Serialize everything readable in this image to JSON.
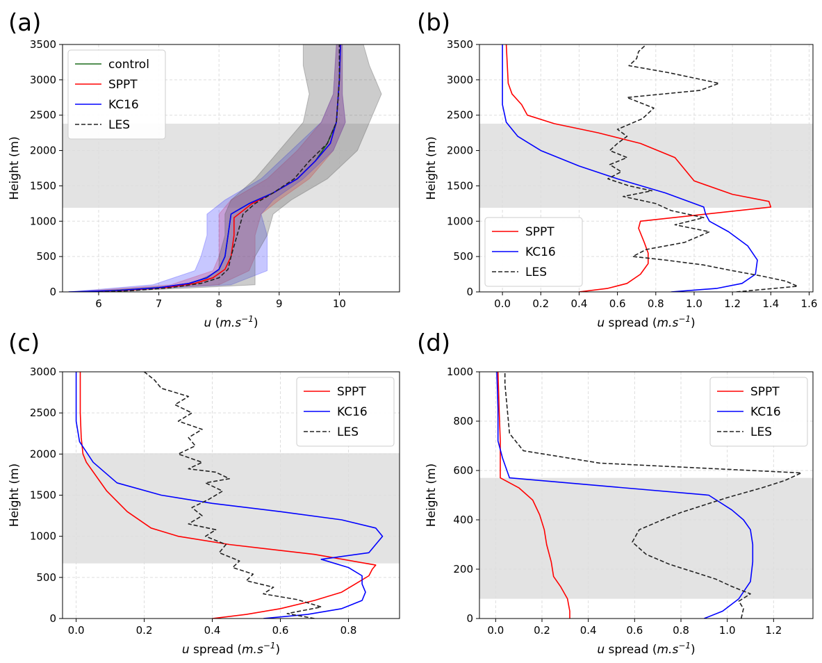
{
  "chart_data": [
    {
      "panel": "(a)",
      "type": "line",
      "xlabel": "u (m.s⁻¹)",
      "ylabel": "Height (m)",
      "xlim": [
        5.4,
        11.0
      ],
      "ylim": [
        0,
        3500
      ],
      "xticks": [
        6,
        7,
        8,
        9,
        10
      ],
      "yticks": [
        0,
        500,
        1000,
        1500,
        2000,
        2500,
        3000,
        3500
      ],
      "grid": true,
      "legend": "top-left",
      "shaded_band": [
        1190,
        2380
      ],
      "series": [
        {
          "name": "control",
          "color": "#1a6b1a",
          "style": "solid",
          "x": [
            5.6,
            6.3,
            7.0,
            7.5,
            7.8,
            8.0,
            8.1,
            8.15,
            8.2,
            8.5,
            8.9,
            9.3,
            9.6,
            9.8,
            9.95,
            10.0,
            10.02
          ],
          "y": [
            0,
            20,
            60,
            120,
            200,
            320,
            500,
            800,
            1100,
            1250,
            1400,
            1600,
            1850,
            2100,
            2400,
            3000,
            3500
          ]
        },
        {
          "name": "SPPT",
          "color": "#ff0000",
          "style": "solid",
          "x": [
            5.6,
            6.4,
            7.1,
            7.6,
            7.9,
            8.1,
            8.2,
            8.25,
            8.25,
            8.55,
            8.9,
            9.3,
            9.6,
            9.85,
            9.95,
            10.0,
            10.02
          ],
          "y": [
            0,
            20,
            60,
            120,
            200,
            320,
            500,
            800,
            1050,
            1250,
            1400,
            1600,
            1850,
            2100,
            2400,
            3000,
            3500
          ]
        },
        {
          "name": "KC16",
          "color": "#0000ff",
          "style": "solid",
          "x": [
            5.5,
            6.3,
            7.0,
            7.5,
            7.8,
            8.0,
            8.1,
            8.15,
            8.2,
            8.5,
            8.9,
            9.3,
            9.6,
            9.85,
            9.95,
            10.0,
            10.02
          ],
          "y": [
            0,
            20,
            60,
            120,
            200,
            320,
            500,
            800,
            1100,
            1250,
            1400,
            1600,
            1850,
            2100,
            2400,
            3000,
            3500
          ]
        },
        {
          "name": "LES",
          "color": "#222222",
          "style": "dashed",
          "x": [
            6.0,
            6.6,
            7.2,
            7.7,
            8.0,
            8.15,
            8.2,
            8.3,
            8.4,
            8.6,
            8.9,
            9.25,
            9.5,
            9.8,
            9.95,
            10.0,
            10.0
          ],
          "y": [
            0,
            20,
            60,
            120,
            200,
            320,
            500,
            800,
            1100,
            1250,
            1400,
            1600,
            1850,
            2100,
            2400,
            3000,
            3500
          ]
        }
      ],
      "bands": [
        {
          "color": "#ff4444",
          "y": [
            0,
            100,
            300,
            500,
            800,
            1100,
            1300,
            1600,
            2000,
            2400,
            2800,
            3500
          ],
          "lo": [
            5.6,
            7.2,
            7.9,
            8.0,
            8.0,
            8.0,
            8.2,
            8.8,
            9.3,
            9.7,
            9.9,
            9.95
          ],
          "hi": [
            5.8,
            8.0,
            8.5,
            8.6,
            8.6,
            8.7,
            9.0,
            9.5,
            9.9,
            10.1,
            10.05,
            10.05
          ]
        },
        {
          "color": "#4444ff",
          "y": [
            0,
            100,
            300,
            500,
            800,
            1100,
            1300,
            1600,
            2000,
            2400,
            2800,
            3500
          ],
          "lo": [
            5.5,
            6.9,
            7.6,
            7.7,
            7.8,
            7.8,
            8.1,
            8.7,
            9.2,
            9.7,
            9.9,
            9.95
          ],
          "hi": [
            5.8,
            8.2,
            8.8,
            8.8,
            8.8,
            8.7,
            8.9,
            9.4,
            9.9,
            10.1,
            10.05,
            10.05
          ]
        },
        {
          "color": "#555555",
          "y": [
            0,
            100,
            300,
            500,
            800,
            1100,
            1300,
            1600,
            2000,
            2400,
            2800,
            3200,
            3500
          ],
          "lo": [
            5.7,
            7.5,
            8.0,
            8.0,
            8.1,
            8.1,
            8.2,
            8.6,
            9.0,
            9.4,
            9.5,
            9.4,
            9.4
          ],
          "hi": [
            6.2,
            8.6,
            8.6,
            8.6,
            8.8,
            8.9,
            9.2,
            9.8,
            10.3,
            10.5,
            10.7,
            10.5,
            10.4
          ]
        }
      ]
    },
    {
      "panel": "(b)",
      "type": "line",
      "xlabel": "u spread (m.s⁻¹)",
      "ylabel": "Height (m)",
      "xlim": [
        -0.12,
        1.62
      ],
      "ylim": [
        0,
        3500
      ],
      "xticks": [
        0.0,
        0.2,
        0.4,
        0.6,
        0.8,
        1.0,
        1.2,
        1.4,
        1.6
      ],
      "yticks": [
        0,
        500,
        1000,
        1500,
        2000,
        2500,
        3000,
        3500
      ],
      "grid": true,
      "legend": "bottom-left",
      "shaded_band": [
        1190,
        2380
      ],
      "series": [
        {
          "name": "SPPT",
          "color": "#ff0000",
          "style": "solid",
          "x": [
            0.4,
            0.55,
            0.65,
            0.72,
            0.76,
            0.76,
            0.74,
            0.71,
            0.72,
            1.4,
            1.39,
            1.2,
            1.0,
            0.9,
            0.72,
            0.5,
            0.27,
            0.13,
            0.1,
            0.05,
            0.03,
            0.02
          ],
          "y": [
            0,
            50,
            120,
            250,
            400,
            550,
            700,
            900,
            1000,
            1200,
            1280,
            1380,
            1570,
            1900,
            2100,
            2250,
            2380,
            2500,
            2650,
            2800,
            2950,
            3500
          ]
        },
        {
          "name": "KC16",
          "color": "#0000ff",
          "style": "solid",
          "x": [
            0.88,
            1.12,
            1.25,
            1.32,
            1.33,
            1.28,
            1.18,
            1.08,
            1.06,
            1.05,
            0.85,
            0.6,
            0.4,
            0.2,
            0.08,
            0.02,
            0.0,
            0.0,
            0.0
          ],
          "y": [
            0,
            50,
            120,
            250,
            450,
            650,
            850,
            1000,
            1100,
            1200,
            1400,
            1600,
            1780,
            2000,
            2200,
            2400,
            2650,
            3000,
            3500
          ]
        },
        {
          "name": "LES",
          "color": "#222222",
          "style": "dashed",
          "x": [
            1.22,
            1.54,
            1.48,
            1.36,
            1.2,
            1.05,
            0.85,
            0.68,
            0.75,
            0.95,
            1.08,
            0.9,
            1.05,
            0.88,
            0.8,
            0.63,
            0.78,
            0.66,
            0.55,
            0.62,
            0.56,
            0.65,
            0.56,
            0.6,
            0.65,
            0.6,
            0.73,
            0.79,
            0.65,
            1.03,
            1.13,
            0.87,
            0.66,
            0.7,
            0.71,
            0.75
          ],
          "y": [
            0,
            80,
            150,
            220,
            300,
            380,
            450,
            500,
            600,
            700,
            850,
            950,
            1050,
            1150,
            1250,
            1350,
            1430,
            1500,
            1600,
            1700,
            1800,
            1900,
            2000,
            2100,
            2200,
            2300,
            2450,
            2600,
            2750,
            2850,
            2950,
            3100,
            3200,
            3300,
            3400,
            3500
          ]
        }
      ]
    },
    {
      "panel": "(c)",
      "type": "line",
      "xlabel": "u spread (m.s⁻¹)",
      "ylabel": "Height (m)",
      "xlim": [
        -0.04,
        0.95
      ],
      "ylim": [
        0,
        3000
      ],
      "xticks": [
        0.0,
        0.2,
        0.4,
        0.6,
        0.8
      ],
      "yticks": [
        0,
        500,
        1000,
        1500,
        2000,
        2500,
        3000
      ],
      "grid": true,
      "legend": "top-right",
      "shaded_band": [
        670,
        2010
      ],
      "series": [
        {
          "name": "SPPT",
          "color": "#ff0000",
          "style": "solid",
          "x": [
            0.4,
            0.5,
            0.6,
            0.7,
            0.78,
            0.82,
            0.86,
            0.87,
            0.88,
            0.7,
            0.45,
            0.3,
            0.22,
            0.15,
            0.09,
            0.03,
            0.02,
            0.015,
            0.012,
            0.012
          ],
          "y": [
            0,
            50,
            120,
            220,
            320,
            420,
            520,
            600,
            650,
            780,
            900,
            1000,
            1100,
            1300,
            1550,
            1900,
            2000,
            2200,
            2500,
            3000
          ]
        },
        {
          "name": "KC16",
          "color": "#0000ff",
          "style": "solid",
          "x": [
            0.55,
            0.68,
            0.78,
            0.84,
            0.85,
            0.84,
            0.84,
            0.8,
            0.72,
            0.86,
            0.9,
            0.88,
            0.78,
            0.6,
            0.4,
            0.25,
            0.12,
            0.05,
            0.01,
            0.0,
            0.0
          ],
          "y": [
            0,
            50,
            120,
            220,
            320,
            420,
            520,
            620,
            720,
            800,
            1000,
            1100,
            1200,
            1300,
            1400,
            1500,
            1650,
            1900,
            2150,
            2400,
            3000
          ]
        },
        {
          "name": "LES",
          "color": "#222222",
          "style": "dashed",
          "x": [
            0.7,
            0.62,
            0.72,
            0.65,
            0.55,
            0.58,
            0.5,
            0.52,
            0.46,
            0.48,
            0.42,
            0.44,
            0.38,
            0.41,
            0.33,
            0.37,
            0.34,
            0.39,
            0.43,
            0.38,
            0.45,
            0.41,
            0.33,
            0.37,
            0.3,
            0.35,
            0.33,
            0.37,
            0.3,
            0.34,
            0.29,
            0.33,
            0.25,
            0.23,
            0.2
          ],
          "y": [
            0,
            60,
            140,
            230,
            300,
            380,
            460,
            540,
            620,
            700,
            800,
            900,
            1000,
            1080,
            1150,
            1250,
            1350,
            1450,
            1550,
            1650,
            1700,
            1780,
            1820,
            1900,
            2000,
            2100,
            2200,
            2300,
            2400,
            2500,
            2600,
            2700,
            2800,
            2900,
            3000
          ]
        }
      ]
    },
    {
      "panel": "(d)",
      "type": "line",
      "xlabel": "u spread (m.s⁻¹)",
      "ylabel": "Height (m)",
      "xlim": [
        -0.07,
        1.37
      ],
      "ylim": [
        0,
        1000
      ],
      "xticks": [
        0.0,
        0.2,
        0.4,
        0.6,
        0.8,
        1.0,
        1.2
      ],
      "yticks": [
        0,
        200,
        400,
        600,
        800,
        1000
      ],
      "grid": true,
      "legend": "top-right",
      "shaded_band": [
        80,
        570
      ],
      "series": [
        {
          "name": "SPPT",
          "color": "#ff0000",
          "style": "solid",
          "x": [
            0.32,
            0.32,
            0.31,
            0.28,
            0.25,
            0.24,
            0.22,
            0.21,
            0.19,
            0.16,
            0.1,
            0.02,
            0.02,
            0.015,
            0.01
          ],
          "y": [
            0,
            30,
            80,
            130,
            170,
            230,
            300,
            360,
            420,
            480,
            530,
            570,
            720,
            850,
            1000
          ]
        },
        {
          "name": "KC16",
          "color": "#0000ff",
          "style": "solid",
          "x": [
            0.9,
            0.98,
            1.05,
            1.1,
            1.11,
            1.11,
            1.1,
            1.07,
            1.02,
            0.92,
            0.06,
            0.03,
            0.01,
            0.01,
            0.005
          ],
          "y": [
            0,
            30,
            80,
            150,
            230,
            300,
            360,
            400,
            440,
            500,
            570,
            650,
            720,
            850,
            1000
          ]
        },
        {
          "name": "LES",
          "color": "#222222",
          "style": "dashed",
          "x": [
            1.06,
            1.07,
            1.05,
            1.1,
            1.02,
            0.95,
            0.85,
            0.75,
            0.65,
            0.59,
            0.62,
            0.72,
            0.8,
            0.9,
            1.0,
            1.15,
            1.25,
            1.32,
            0.45,
            0.12,
            0.06,
            0.05,
            0.04,
            0.04
          ],
          "y": [
            0,
            40,
            70,
            100,
            130,
            160,
            190,
            220,
            260,
            310,
            360,
            400,
            430,
            460,
            490,
            530,
            560,
            590,
            630,
            680,
            750,
            850,
            950,
            1000
          ]
        }
      ]
    }
  ]
}
